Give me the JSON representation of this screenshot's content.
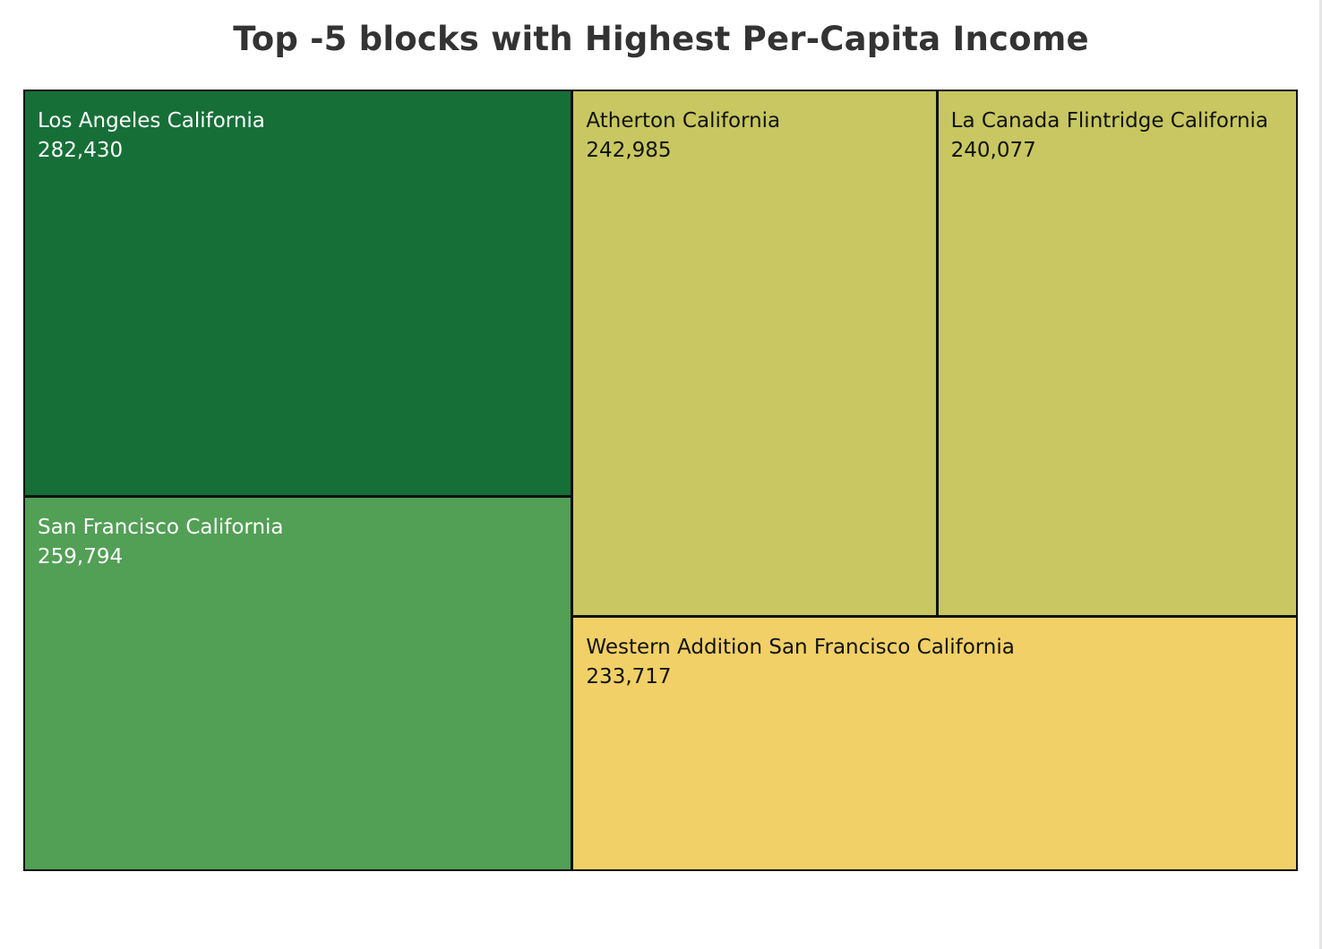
{
  "title": "Top -5 blocks with Highest Per-Capita Income",
  "chart_data": {
    "type": "treemap",
    "title": "Top -5 blocks with Highest Per-Capita Income",
    "items": [
      {
        "name": "Los Angeles California",
        "value": 282430,
        "label": "282,430",
        "color": "#166f37",
        "text_color": "#ffffff"
      },
      {
        "name": "San Francisco California",
        "value": 259794,
        "label": "259,794",
        "color": "#529f56",
        "text_color": "#ffffff"
      },
      {
        "name": "Atherton California",
        "value": 242985,
        "label": "242,985",
        "color": "#c8c761",
        "text_color": "#111111"
      },
      {
        "name": "La Canada Flintridge California",
        "value": 240077,
        "label": "240,077",
        "color": "#c8c761",
        "text_color": "#111111"
      },
      {
        "name": "Western Addition San Francisco California",
        "value": 233717,
        "label": "233,717",
        "color": "#f1d067",
        "text_color": "#111111"
      }
    ]
  }
}
